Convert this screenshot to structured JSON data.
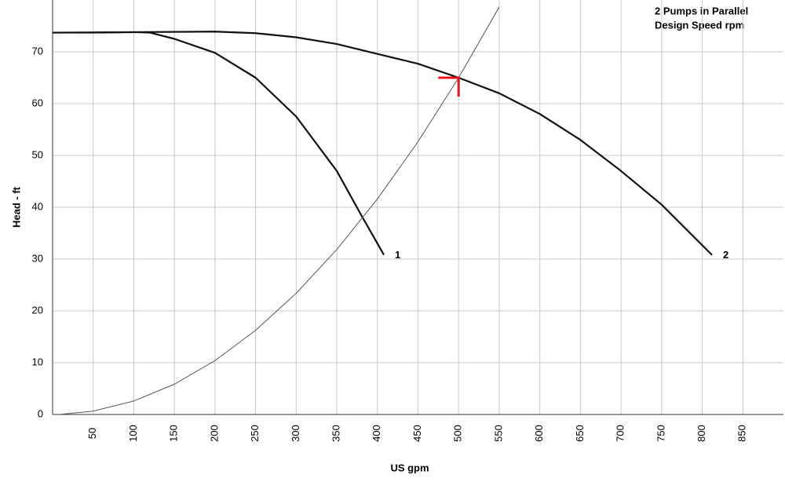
{
  "chart_data": {
    "type": "line",
    "legend_text": [
      "2 Pumps in Parallel",
      "Design Speed rpm"
    ],
    "x_label": "US gpm",
    "y_label": "Head - ft",
    "series": [
      {
        "name": "1",
        "color": "#111111",
        "width": 2.2,
        "x": [
          0,
          50,
          100,
          120,
          150,
          200,
          250,
          300,
          350,
          380,
          408
        ],
        "values": [
          73.7,
          73.7,
          73.8,
          73.7,
          72.5,
          69.8,
          65,
          57.5,
          47,
          38.5,
          30.8
        ]
      },
      {
        "name": "2",
        "color": "#111111",
        "width": 2.2,
        "x": [
          0,
          100,
          200,
          250,
          300,
          350,
          400,
          450,
          500,
          550,
          600,
          650,
          700,
          750,
          812
        ],
        "values": [
          73.7,
          73.8,
          73.9,
          73.6,
          72.8,
          71.5,
          69.6,
          67.7,
          65,
          62,
          58,
          53,
          47,
          40.5,
          30.8
        ]
      },
      {
        "color": "#555555",
        "width": 1,
        "x": [
          8,
          50,
          100,
          150,
          200,
          250,
          300,
          350,
          400,
          450,
          500,
          550
        ],
        "values": [
          0,
          0.65,
          2.6,
          5.85,
          10.4,
          16.25,
          23.4,
          31.85,
          41.6,
          52.65,
          65,
          78.65
        ]
      }
    ],
    "operating_point": {
      "x": 500,
      "y": 65,
      "color": "#e8141c"
    },
    "xlim": [
      0,
      900
    ],
    "ylim": [
      0,
      80
    ],
    "xticks": [
      50,
      100,
      150,
      200,
      250,
      300,
      350,
      400,
      450,
      500,
      550,
      600,
      650,
      700,
      750,
      800,
      850
    ],
    "yticks": [
      0,
      10,
      20,
      30,
      40,
      50,
      60,
      70
    ],
    "grid": true
  }
}
